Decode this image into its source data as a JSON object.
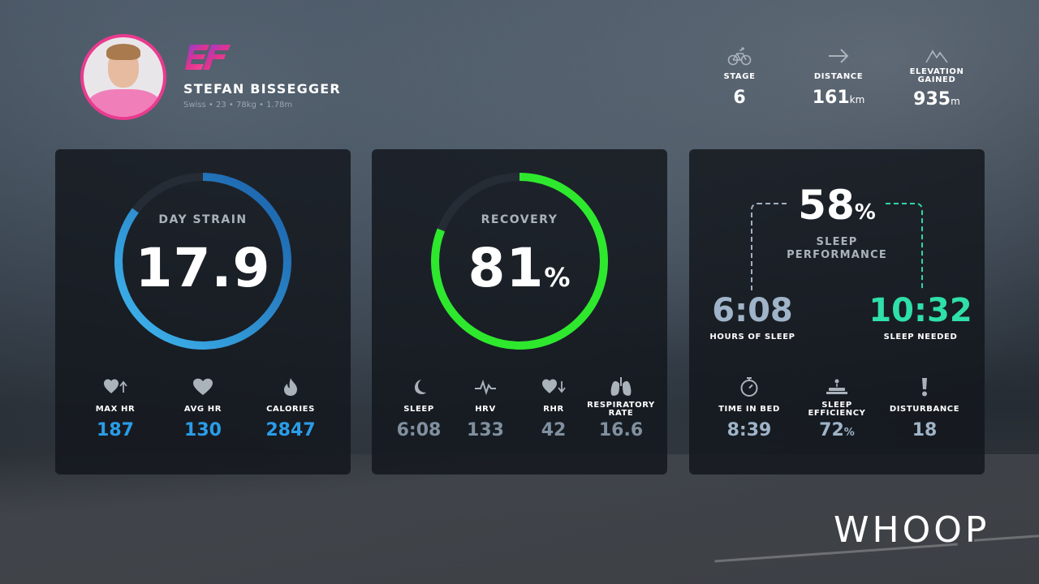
{
  "athlete": {
    "name": "STEFAN BISSEGGER",
    "meta": "Swiss • 23 • 78kg • 1.78m"
  },
  "race": {
    "stage": {
      "label": "STAGE",
      "value": "6",
      "unit": ""
    },
    "distance": {
      "label": "DISTANCE",
      "value": "161",
      "unit": "km"
    },
    "elevation": {
      "label": "ELEVATION GAINED",
      "value": "935",
      "unit": "m"
    }
  },
  "strain": {
    "label": "DAY STRAIN",
    "value": "17.9",
    "max_value": 21,
    "color_start": "#3fb8f0",
    "color_end": "#1a5ea8",
    "metrics": [
      {
        "icon": "heart-up-icon",
        "label": "MAX HR",
        "value": "187"
      },
      {
        "icon": "heart-icon",
        "label": "AVG HR",
        "value": "130"
      },
      {
        "icon": "flame-icon",
        "label": "CALORIES",
        "value": "2847"
      }
    ]
  },
  "recovery": {
    "label": "RECOVERY",
    "value": "81",
    "unit": "%",
    "percent": 81,
    "color": "#2ee82e",
    "metrics": [
      {
        "icon": "moon-icon",
        "label": "SLEEP",
        "value": "6:08"
      },
      {
        "icon": "pulse-icon",
        "label": "HRV",
        "value": "133"
      },
      {
        "icon": "heart-down-icon",
        "label": "RHR",
        "value": "42"
      },
      {
        "icon": "lungs-icon",
        "label": "RESPIRATORY RATE",
        "value": "16.6"
      }
    ]
  },
  "sleep": {
    "performance_value": "58",
    "performance_unit": "%",
    "performance_label": "SLEEP PERFORMANCE",
    "hours_of_sleep": {
      "label": "HOURS OF SLEEP",
      "value": "6:08"
    },
    "sleep_needed": {
      "label": "SLEEP NEEDED",
      "value": "10:32"
    },
    "metrics": [
      {
        "icon": "stopwatch-icon",
        "label": "TIME IN BED",
        "value": "8:39",
        "unit": ""
      },
      {
        "icon": "bed-icon",
        "label": "SLEEP EFFICIENCY",
        "value": "72",
        "unit": "%"
      },
      {
        "icon": "exclamation-icon",
        "label": "DISTURBANCE",
        "value": "18",
        "unit": ""
      }
    ]
  },
  "colors": {
    "strain_metric_value": "#2a9de8",
    "recovery_metric_value": "#8090a0",
    "sleep_metric_value": "#9fb4c8",
    "hours_of_sleep": "#9fb4c8",
    "sleep_needed": "#2fe0a8",
    "avatar_border": "#e93b8f"
  },
  "brand": "WHOOP"
}
